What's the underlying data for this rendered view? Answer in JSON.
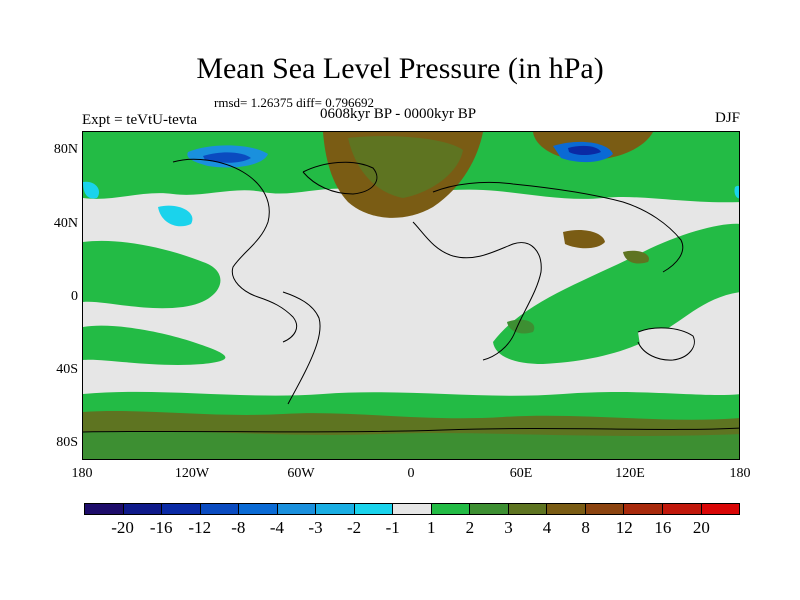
{
  "title": "Mean Sea Level Pressure (in hPa)",
  "stats": "rmsd= 1.26375 diff= 0.796692",
  "experiment": "Expt = teVtU-tevta",
  "period": "0608kyr BP - 0000kyr BP",
  "season": "DJF",
  "lat_labels": [
    "80N",
    "40N",
    "0",
    "40S",
    "80S"
  ],
  "lon_labels": [
    "180",
    "120W",
    "60W",
    "0",
    "60E",
    "120E",
    "180"
  ],
  "colorbar": {
    "labels": [
      "-20",
      "-16",
      "-12",
      "-8",
      "-4",
      "-3",
      "-2",
      "-1",
      "1",
      "2",
      "3",
      "4",
      "8",
      "12",
      "16",
      "20"
    ],
    "colors": [
      "#1d0c6a",
      "#0f1a8a",
      "#0a2aa5",
      "#0a4bc0",
      "#0a6ad4",
      "#1a90dd",
      "#1aaee3",
      "#1ad3ec",
      "#e6e6e6",
      "#23bb45",
      "#3d8f32",
      "#5e7421",
      "#7a5c14",
      "#8c4410",
      "#a82a0c",
      "#c1180b",
      "#d90606"
    ]
  }
}
